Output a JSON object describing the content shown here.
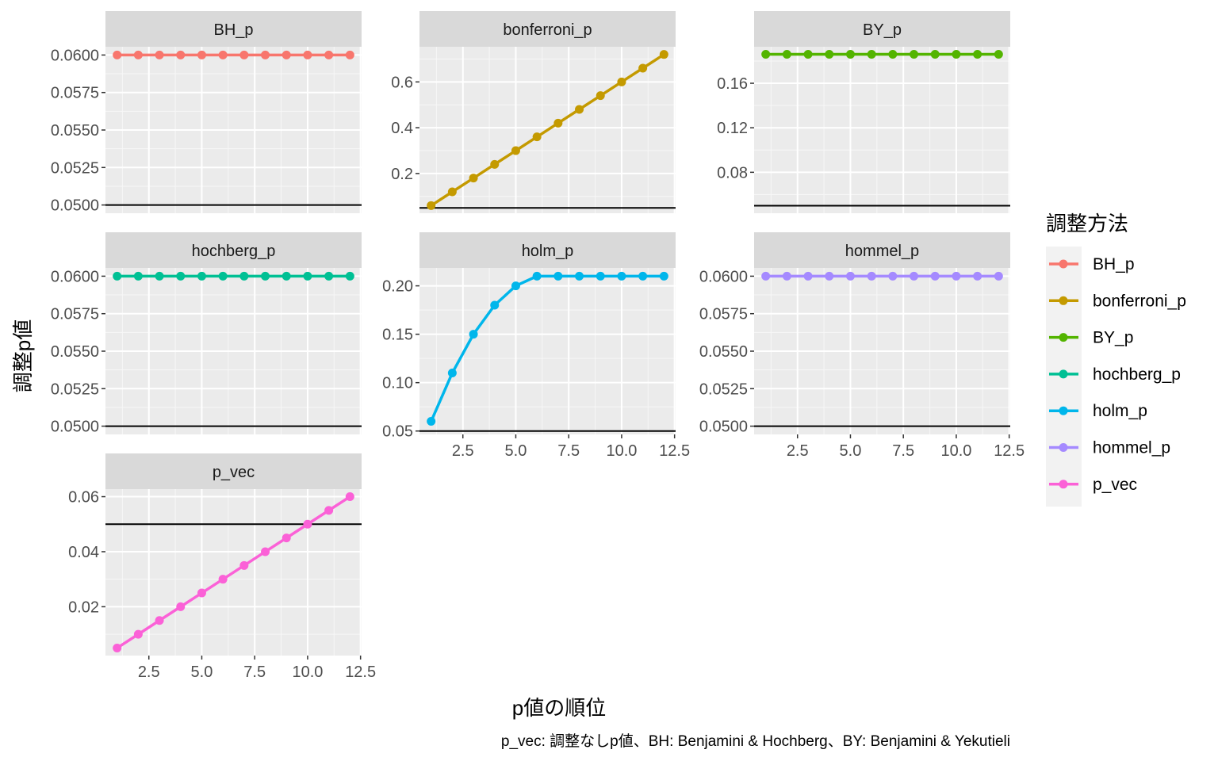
{
  "chart_data": {
    "type": "line",
    "facet_layout": "3 columns, 3 rows",
    "x": [
      1,
      2,
      3,
      4,
      5,
      6,
      7,
      8,
      9,
      10,
      11,
      12
    ],
    "xlabel": "p値の順位",
    "ylabel": "調整p値",
    "caption": "p_vec: 調整なしp値、BH: Benjamini & Hochberg、BY: Benjamini & Yekutieli",
    "legend": {
      "title": "調整方法",
      "position": "right"
    },
    "reference_line_y": 0.05,
    "grid": true,
    "x_ticks": [
      2.5,
      5.0,
      7.5,
      10.0,
      12.5
    ],
    "x_tick_labels": [
      "2.5",
      "5.0",
      "7.5",
      "10.0",
      "12.5"
    ],
    "xlim": [
      0.45,
      12.55
    ],
    "series": [
      {
        "name": "BH_p",
        "color": "#F8766D",
        "values": [
          0.06,
          0.06,
          0.06,
          0.06,
          0.06,
          0.06,
          0.06,
          0.06,
          0.06,
          0.06,
          0.06,
          0.06
        ],
        "ylim": [
          0.04945,
          0.06055
        ],
        "y_ticks": [
          0.05,
          0.0525,
          0.055,
          0.0575,
          0.06
        ],
        "y_tick_labels": [
          "0.0500",
          "0.0525",
          "0.0550",
          "0.0575",
          "0.0600"
        ]
      },
      {
        "name": "bonferroni_p",
        "color": "#C49A00",
        "values": [
          0.06,
          0.12,
          0.18,
          0.24,
          0.3,
          0.36,
          0.42,
          0.48,
          0.54,
          0.6,
          0.66,
          0.72
        ],
        "ylim": [
          0.0265,
          0.7535
        ],
        "y_ticks": [
          0.2,
          0.4,
          0.6
        ],
        "y_tick_labels": [
          "0.2",
          "0.4",
          "0.6"
        ]
      },
      {
        "name": "BY_p",
        "color": "#53B400",
        "values": [
          0.186,
          0.186,
          0.186,
          0.186,
          0.186,
          0.186,
          0.186,
          0.186,
          0.186,
          0.186,
          0.186,
          0.186
        ],
        "ylim": [
          0.0432,
          0.1928
        ],
        "y_ticks": [
          0.08,
          0.12,
          0.16
        ],
        "y_tick_labels": [
          "0.08",
          "0.12",
          "0.16"
        ]
      },
      {
        "name": "hochberg_p",
        "color": "#00C094",
        "values": [
          0.06,
          0.06,
          0.06,
          0.06,
          0.06,
          0.06,
          0.06,
          0.06,
          0.06,
          0.06,
          0.06,
          0.06
        ],
        "ylim": [
          0.04945,
          0.06055
        ],
        "y_ticks": [
          0.05,
          0.0525,
          0.055,
          0.0575,
          0.06
        ],
        "y_tick_labels": [
          "0.0500",
          "0.0525",
          "0.0550",
          "0.0575",
          "0.0600"
        ]
      },
      {
        "name": "holm_p",
        "color": "#00B6EB",
        "values": [
          0.06,
          0.11,
          0.15,
          0.18,
          0.2,
          0.21,
          0.21,
          0.21,
          0.21,
          0.21,
          0.21,
          0.21
        ],
        "ylim": [
          0.0465,
          0.2185
        ],
        "y_ticks": [
          0.05,
          0.1,
          0.15,
          0.2
        ],
        "y_tick_labels": [
          "0.05",
          "0.10",
          "0.15",
          "0.20"
        ]
      },
      {
        "name": "hommel_p",
        "color": "#A58AFF",
        "values": [
          0.06,
          0.06,
          0.06,
          0.06,
          0.06,
          0.06,
          0.06,
          0.06,
          0.06,
          0.06,
          0.06,
          0.06
        ],
        "ylim": [
          0.04945,
          0.06055
        ],
        "y_ticks": [
          0.05,
          0.0525,
          0.055,
          0.0575,
          0.06
        ],
        "y_tick_labels": [
          "0.0500",
          "0.0525",
          "0.0550",
          "0.0575",
          "0.0600"
        ]
      },
      {
        "name": "p_vec",
        "color": "#FB61D7",
        "values": [
          0.005,
          0.01,
          0.015,
          0.02,
          0.025,
          0.03,
          0.035,
          0.04,
          0.045,
          0.05,
          0.055,
          0.06
        ],
        "ylim": [
          0.00225,
          0.06275
        ],
        "y_ticks": [
          0.02,
          0.04,
          0.06
        ],
        "y_tick_labels": [
          "0.02",
          "0.04",
          "0.06"
        ]
      }
    ]
  }
}
